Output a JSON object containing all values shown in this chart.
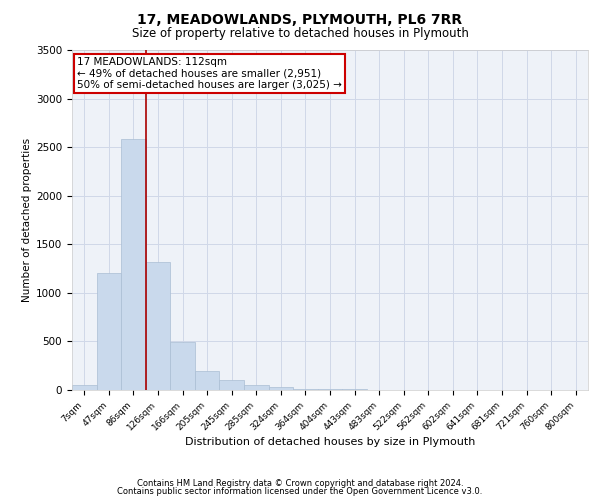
{
  "title1": "17, MEADOWLANDS, PLYMOUTH, PL6 7RR",
  "title2": "Size of property relative to detached houses in Plymouth",
  "xlabel": "Distribution of detached houses by size in Plymouth",
  "ylabel": "Number of detached properties",
  "categories": [
    "7sqm",
    "47sqm",
    "86sqm",
    "126sqm",
    "166sqm",
    "205sqm",
    "245sqm",
    "285sqm",
    "324sqm",
    "364sqm",
    "404sqm",
    "443sqm",
    "483sqm",
    "522sqm",
    "562sqm",
    "602sqm",
    "641sqm",
    "681sqm",
    "721sqm",
    "760sqm",
    "800sqm"
  ],
  "values": [
    50,
    1200,
    2580,
    1320,
    490,
    200,
    100,
    55,
    30,
    15,
    10,
    8,
    5,
    3,
    2,
    2,
    1,
    1,
    1,
    1,
    1
  ],
  "bar_color": "#c9d9ec",
  "bar_edge_color": "#aabdd4",
  "vline_x": 2.5,
  "vline_color": "#aa0000",
  "annotation_text": "17 MEADOWLANDS: 112sqm\n← 49% of detached houses are smaller (2,951)\n50% of semi-detached houses are larger (3,025) →",
  "annotation_box_color": "#ffffff",
  "annotation_box_edge": "#cc0000",
  "ylim": [
    0,
    3500
  ],
  "yticks": [
    0,
    500,
    1000,
    1500,
    2000,
    2500,
    3000,
    3500
  ],
  "grid_color": "#d0d8e8",
  "bg_color": "#eef2f8",
  "footer1": "Contains HM Land Registry data © Crown copyright and database right 2024.",
  "footer2": "Contains public sector information licensed under the Open Government Licence v3.0."
}
